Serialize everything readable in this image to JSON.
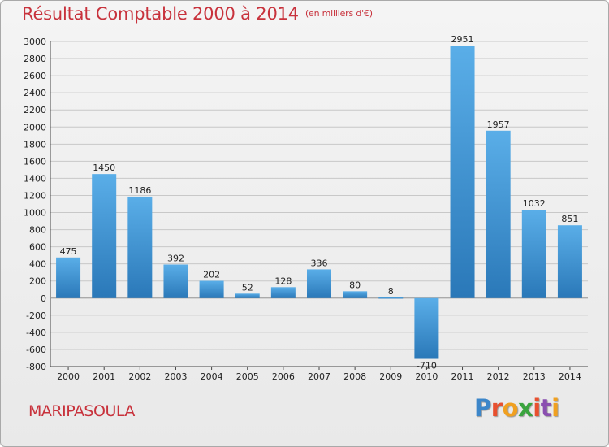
{
  "header": {
    "title": "Résultat Comptable 2000 à 2014",
    "unit": "(en milliers d'€)"
  },
  "footer": {
    "town": "MARIPASOULA"
  },
  "logo": {
    "letters": [
      "P",
      "r",
      "o",
      "x",
      "i",
      "t",
      "i"
    ],
    "colors": [
      "#3c86c9",
      "#e8502f",
      "#f0a020",
      "#3aa43e",
      "#e8502f",
      "#8a4fb0",
      "#f0a020"
    ]
  },
  "colors": {
    "bar_top": "#5aaee8",
    "bar_bottom": "#2a78b8",
    "title": "#c8323c",
    "grid": "#c8c8c8"
  },
  "chart_data": {
    "type": "bar",
    "title": "Résultat Comptable 2000 à 2014",
    "subtitle": "(en milliers d'€)",
    "categories": [
      "2000",
      "2001",
      "2002",
      "2003",
      "2004",
      "2005",
      "2006",
      "2007",
      "2008",
      "2009",
      "2010",
      "2011",
      "2012",
      "2013",
      "2014"
    ],
    "values": [
      475,
      1450,
      1186,
      392,
      202,
      52,
      128,
      336,
      80,
      8,
      -710,
      2951,
      1957,
      1032,
      851
    ],
    "data_labels": [
      "475",
      "1450",
      "1186",
      "392",
      "202",
      "52",
      "128",
      "336",
      "80",
      "8",
      "-710",
      "2951",
      "1957",
      "1032",
      "851"
    ],
    "ylim": [
      -800,
      3000
    ],
    "yticks": [
      "-800",
      "-600",
      "-400",
      "-200",
      "0",
      "200",
      "400",
      "600",
      "800",
      "1000",
      "1200",
      "1400",
      "1600",
      "1800",
      "2000",
      "2200",
      "2400",
      "2600",
      "2800",
      "3000"
    ],
    "grid": true,
    "legend": "none"
  }
}
